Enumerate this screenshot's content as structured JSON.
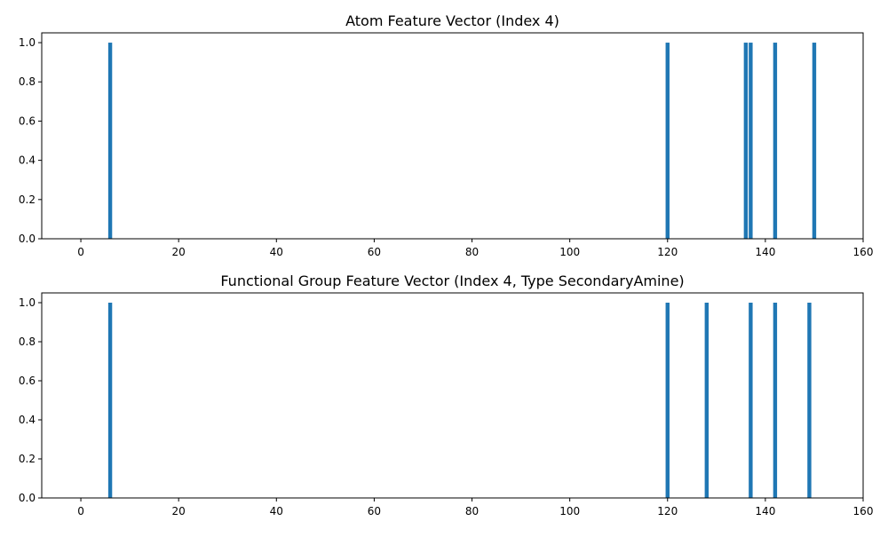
{
  "chart_data": [
    {
      "type": "bar",
      "title": "Atom Feature Vector (Index 4)",
      "xlabel": "",
      "ylabel": "",
      "xlim": [
        -8,
        160
      ],
      "ylim": [
        0,
        1.05
      ],
      "x_ticks": [
        0,
        20,
        40,
        60,
        80,
        100,
        120,
        140,
        160
      ],
      "y_ticks": [
        0.0,
        0.2,
        0.4,
        0.6,
        0.8,
        1.0
      ],
      "x_tick_labels": [
        "0",
        "20",
        "40",
        "60",
        "80",
        "100",
        "120",
        "140",
        "160"
      ],
      "y_tick_labels": [
        "0.0",
        "0.2",
        "0.4",
        "0.6",
        "0.8",
        "1.0"
      ],
      "grid": false,
      "bar_color": "#1f77b4",
      "bar_width": 0.8,
      "points": [
        {
          "x": 6,
          "value": 1.0
        },
        {
          "x": 120,
          "value": 1.0
        },
        {
          "x": 136,
          "value": 1.0
        },
        {
          "x": 137,
          "value": 1.0
        },
        {
          "x": 142,
          "value": 1.0
        },
        {
          "x": 150,
          "value": 1.0
        }
      ]
    },
    {
      "type": "bar",
      "title": "Functional Group Feature Vector (Index 4, Type SecondaryAmine)",
      "xlabel": "",
      "ylabel": "",
      "xlim": [
        -8,
        160
      ],
      "ylim": [
        0,
        1.05
      ],
      "x_ticks": [
        0,
        20,
        40,
        60,
        80,
        100,
        120,
        140,
        160
      ],
      "y_ticks": [
        0.0,
        0.2,
        0.4,
        0.6,
        0.8,
        1.0
      ],
      "x_tick_labels": [
        "0",
        "20",
        "40",
        "60",
        "80",
        "100",
        "120",
        "140",
        "160"
      ],
      "y_tick_labels": [
        "0.0",
        "0.2",
        "0.4",
        "0.6",
        "0.8",
        "1.0"
      ],
      "grid": false,
      "bar_color": "#1f77b4",
      "bar_width": 0.8,
      "points": [
        {
          "x": 6,
          "value": 1.0
        },
        {
          "x": 120,
          "value": 1.0
        },
        {
          "x": 128,
          "value": 1.0
        },
        {
          "x": 137,
          "value": 1.0
        },
        {
          "x": 142,
          "value": 1.0
        },
        {
          "x": 149,
          "value": 1.0
        }
      ]
    }
  ]
}
